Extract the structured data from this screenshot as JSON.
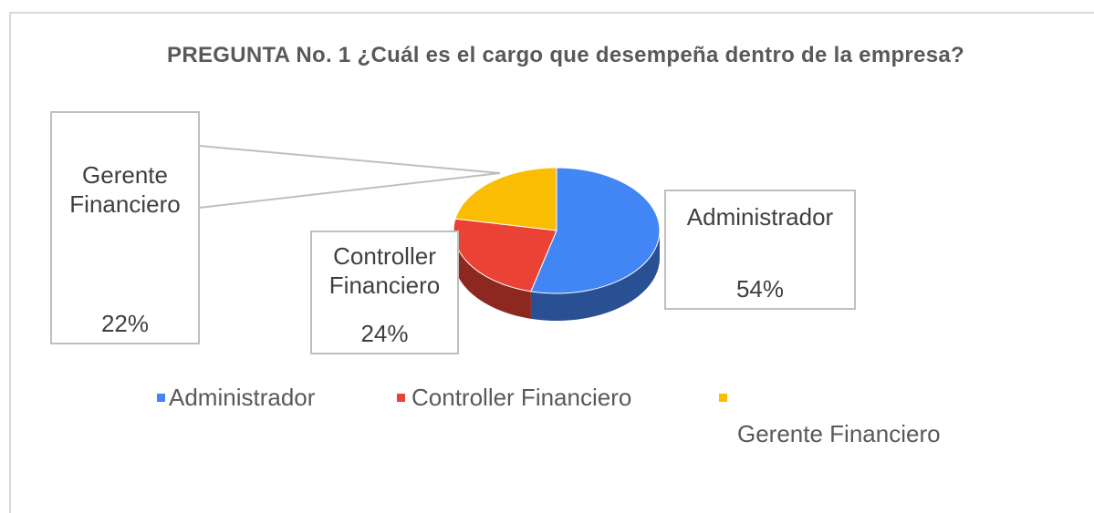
{
  "chart_data": {
    "type": "pie3d",
    "title": "PREGUNTA No. 1  ¿Cuál es el cargo que desempeña dentro de la empresa?",
    "categories": [
      "Administrador",
      "Controller Financiero",
      "Gerente Financiero"
    ],
    "values": [
      54,
      24,
      22
    ],
    "value_labels": [
      "54%",
      "24%",
      "22%"
    ],
    "colors": [
      "#4285f4",
      "#ea4335",
      "#fbbc04"
    ],
    "legend": "bottom"
  }
}
